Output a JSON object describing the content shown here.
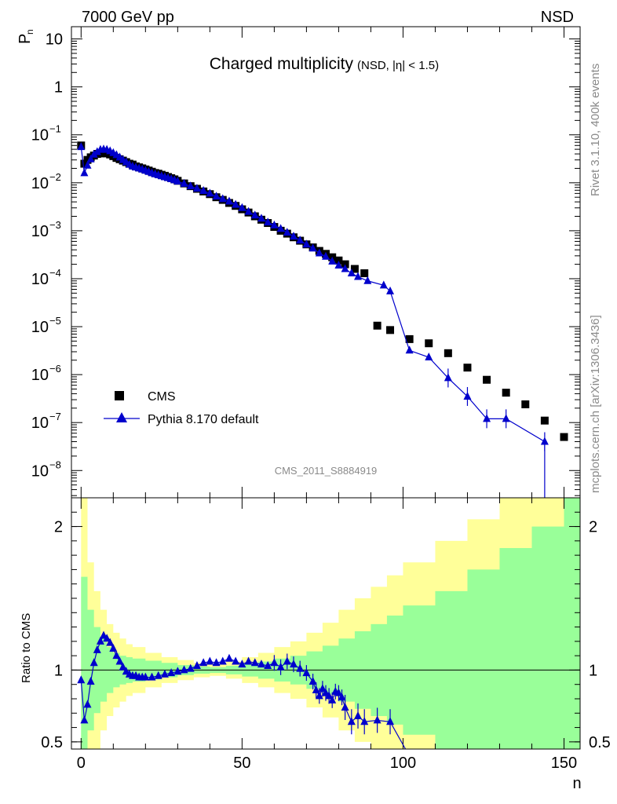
{
  "header": {
    "left": "7000 GeV pp",
    "right": "NSD"
  },
  "side_labels": {
    "rivet": "Rivet 3.1.10,  400k events",
    "mcplots": "mcplots.cern.ch [arXiv:1306.3436]"
  },
  "chart_data": [
    {
      "type": "scatter",
      "title": "Charged multiplicity",
      "title_suffix": "(NSD, |η| < 1.5)",
      "ylabel": "P",
      "ylabel_sub": "n",
      "xlabel": "n",
      "log_y": true,
      "xlim": [
        -3,
        155
      ],
      "ylim": [
        2.7e-09,
        18
      ],
      "x_ticks": [
        0,
        50,
        100,
        150
      ],
      "y_ticks": [
        {
          "v": 10,
          "label": "10"
        },
        {
          "v": 1,
          "label": "1"
        },
        {
          "v": 0.1,
          "label": "10",
          "exp": "−1"
        },
        {
          "v": 0.01,
          "label": "10",
          "exp": "−2"
        },
        {
          "v": 0.001,
          "label": "10",
          "exp": "−3"
        },
        {
          "v": 0.0001,
          "label": "10",
          "exp": "−4"
        },
        {
          "v": 1e-05,
          "label": "10",
          "exp": "−5"
        },
        {
          "v": 1e-06,
          "label": "10",
          "exp": "−6"
        },
        {
          "v": 1e-07,
          "label": "10",
          "exp": "−7"
        },
        {
          "v": 1e-08,
          "label": "10",
          "exp": "−8"
        }
      ],
      "watermark": "CMS_2011_S8884919",
      "legend_position": "bottom-left",
      "series": [
        {
          "name": "CMS",
          "marker": "square",
          "color": "#000000",
          "points": [
            [
              0,
              0.06
            ],
            [
              1,
              0.025
            ],
            [
              2,
              0.03
            ],
            [
              3,
              0.034
            ],
            [
              4,
              0.037
            ],
            [
              5,
              0.04
            ],
            [
              6,
              0.041
            ],
            [
              7,
              0.042
            ],
            [
              8,
              0.041
            ],
            [
              9,
              0.039
            ],
            [
              10,
              0.036
            ],
            [
              11,
              0.033
            ],
            [
              12,
              0.031
            ],
            [
              13,
              0.029
            ],
            [
              14,
              0.027
            ],
            [
              15,
              0.025
            ],
            [
              16,
              0.024
            ],
            [
              17,
              0.022
            ],
            [
              18,
              0.021
            ],
            [
              19,
              0.02
            ],
            [
              20,
              0.019
            ],
            [
              21,
              0.018
            ],
            [
              22,
              0.017
            ],
            [
              23,
              0.016
            ],
            [
              24,
              0.0155
            ],
            [
              25,
              0.0147
            ],
            [
              26,
              0.014
            ],
            [
              27,
              0.0132
            ],
            [
              28,
              0.0125
            ],
            [
              29,
              0.0118
            ],
            [
              30,
              0.011
            ],
            [
              32,
              0.0097
            ],
            [
              34,
              0.0085
            ],
            [
              36,
              0.0075
            ],
            [
              38,
              0.0066
            ],
            [
              40,
              0.0058
            ],
            [
              42,
              0.005
            ],
            [
              44,
              0.0044
            ],
            [
              46,
              0.0038
            ],
            [
              48,
              0.0033
            ],
            [
              50,
              0.0028
            ],
            [
              52,
              0.0024
            ],
            [
              54,
              0.002
            ],
            [
              56,
              0.0017
            ],
            [
              58,
              0.00145
            ],
            [
              60,
              0.0012
            ],
            [
              62,
              0.001
            ],
            [
              64,
              0.00087
            ],
            [
              66,
              0.00073
            ],
            [
              68,
              0.00062
            ],
            [
              70,
              0.00052
            ],
            [
              72,
              0.00045
            ],
            [
              74,
              0.00038
            ],
            [
              76,
              0.00033
            ],
            [
              78,
              0.00028
            ],
            [
              80,
              0.00024
            ],
            [
              82,
              0.0002
            ],
            [
              85,
              0.00016
            ],
            [
              88,
              0.00013
            ],
            [
              92,
              1.05e-05
            ],
            [
              96,
              8.5e-06
            ],
            [
              102,
              5.5e-06
            ],
            [
              108,
              4.5e-06
            ],
            [
              114,
              2.8e-06
            ],
            [
              120,
              1.4e-06
            ],
            [
              126,
              7.8e-07
            ],
            [
              132,
              4.2e-07
            ],
            [
              138,
              2.4e-07
            ],
            [
              144,
              1.1e-07
            ],
            [
              150,
              5e-08
            ]
          ]
        },
        {
          "name": "Pythia 8.170 default",
          "marker": "triangle",
          "color": "#0000cc",
          "points": [
            [
              0,
              0.056
            ],
            [
              1,
              0.016
            ],
            [
              2,
              0.023
            ],
            [
              3,
              0.031
            ],
            [
              4,
              0.039
            ],
            [
              5,
              0.044
            ],
            [
              6,
              0.049
            ],
            [
              7,
              0.05
            ],
            [
              8,
              0.049
            ],
            [
              9,
              0.046
            ],
            [
              10,
              0.042
            ],
            [
              11,
              0.038
            ],
            [
              12,
              0.034
            ],
            [
              13,
              0.03
            ],
            [
              14,
              0.027
            ],
            [
              15,
              0.024
            ],
            [
              16,
              0.022
            ],
            [
              17,
              0.021
            ],
            [
              18,
              0.02
            ],
            [
              19,
              0.019
            ],
            [
              20,
              0.018
            ],
            [
              21,
              0.017
            ],
            [
              22,
              0.016
            ],
            [
              23,
              0.0152
            ],
            [
              24,
              0.0145
            ],
            [
              25,
              0.0138
            ],
            [
              26,
              0.0132
            ],
            [
              27,
              0.0126
            ],
            [
              28,
              0.012
            ],
            [
              29,
              0.0114
            ],
            [
              30,
              0.0107
            ],
            [
              32,
              0.0096
            ],
            [
              34,
              0.0085
            ],
            [
              36,
              0.0076
            ],
            [
              38,
              0.0068
            ],
            [
              40,
              0.006
            ],
            [
              42,
              0.0052
            ],
            [
              44,
              0.0046
            ],
            [
              46,
              0.0041
            ],
            [
              48,
              0.0035
            ],
            [
              50,
              0.003
            ],
            [
              52,
              0.0025
            ],
            [
              54,
              0.0021
            ],
            [
              56,
              0.0018
            ],
            [
              58,
              0.0015
            ],
            [
              60,
              0.0013
            ],
            [
              62,
              0.0011
            ],
            [
              64,
              0.00092
            ],
            [
              66,
              0.00076
            ],
            [
              68,
              0.00063
            ],
            [
              70,
              0.00052
            ],
            [
              72,
              0.00043
            ],
            [
              74,
              0.00034
            ],
            [
              76,
              0.00029
            ],
            [
              78,
              0.00023
            ],
            [
              80,
              0.00019
            ],
            [
              82,
              0.00016
            ],
            [
              84,
              0.00013
            ],
            [
              86,
              0.00011
            ],
            [
              89,
              9e-05
            ],
            [
              94,
              7.3e-05
            ],
            [
              96,
              5.5e-05
            ],
            [
              102,
              3.2e-06
            ],
            [
              108,
              2.3e-06
            ],
            [
              114,
              8.5e-07
            ],
            [
              120,
              3.5e-07
            ],
            [
              126,
              1.2e-07
            ],
            [
              132,
              1.2e-07
            ],
            [
              144,
              4e-08
            ]
          ]
        }
      ]
    },
    {
      "type": "line",
      "ylabel": "Ratio to CMS",
      "xlabel": "n",
      "xlim": [
        -3,
        155
      ],
      "ylim": [
        0.45,
        2.2
      ],
      "y_ticks": [
        0.5,
        1,
        2
      ],
      "x_ticks": [
        0,
        50,
        100,
        150
      ],
      "reference_line": 1,
      "bands": {
        "inner_color": "#99ff99",
        "outer_color": "#ffff99",
        "x": [
          0,
          2,
          4,
          6,
          8,
          10,
          12,
          14,
          16,
          20,
          25,
          30,
          35,
          40,
          45,
          50,
          55,
          60,
          65,
          70,
          75,
          80,
          85,
          90,
          95,
          100,
          110,
          120,
          130,
          140,
          150
        ],
        "inner_half": [
          0.65,
          0.42,
          0.3,
          0.22,
          0.16,
          0.12,
          0.1,
          0.09,
          0.08,
          0.065,
          0.05,
          0.035,
          0.025,
          0.02,
          0.03,
          0.045,
          0.06,
          0.08,
          0.1,
          0.13,
          0.17,
          0.22,
          0.27,
          0.32,
          0.38,
          0.45,
          0.55,
          0.7,
          0.85,
          1.0,
          1.2
        ],
        "outer_half": [
          1.2,
          0.75,
          0.55,
          0.42,
          0.32,
          0.26,
          0.22,
          0.18,
          0.16,
          0.12,
          0.09,
          0.07,
          0.05,
          0.04,
          0.06,
          0.09,
          0.12,
          0.16,
          0.2,
          0.26,
          0.33,
          0.42,
          0.5,
          0.58,
          0.66,
          0.75,
          0.9,
          1.05,
          1.2,
          1.35,
          1.5
        ]
      },
      "series": [
        {
          "name": "Pythia 8.170 default",
          "color": "#0000cc",
          "x": [
            0,
            1,
            2,
            3,
            4,
            5,
            6,
            7,
            8,
            9,
            10,
            11,
            12,
            13,
            14,
            15,
            16,
            17,
            18,
            19,
            20,
            22,
            24,
            26,
            28,
            30,
            32,
            34,
            36,
            38,
            40,
            42,
            44,
            46,
            48,
            50,
            52,
            54,
            56,
            58,
            60,
            62,
            64,
            66,
            68,
            70,
            72,
            73,
            74,
            75,
            76,
            77,
            78,
            79,
            80,
            81,
            82,
            84,
            86,
            88,
            92,
            96,
            102
          ],
          "y": [
            0.93,
            0.65,
            0.76,
            0.92,
            1.05,
            1.14,
            1.2,
            1.24,
            1.22,
            1.19,
            1.15,
            1.1,
            1.06,
            1.02,
            0.99,
            0.97,
            0.96,
            0.96,
            0.95,
            0.95,
            0.95,
            0.95,
            0.96,
            0.97,
            0.98,
            0.99,
            1.0,
            1.01,
            1.03,
            1.05,
            1.06,
            1.05,
            1.06,
            1.08,
            1.06,
            1.04,
            1.06,
            1.05,
            1.04,
            1.03,
            1.05,
            1.02,
            1.06,
            1.04,
            1.01,
            0.98,
            0.92,
            0.86,
            0.82,
            0.87,
            0.84,
            0.82,
            0.79,
            0.85,
            0.84,
            0.81,
            0.74,
            0.64,
            0.68,
            0.64,
            0.65,
            0.64,
            0.4
          ]
        }
      ]
    }
  ]
}
